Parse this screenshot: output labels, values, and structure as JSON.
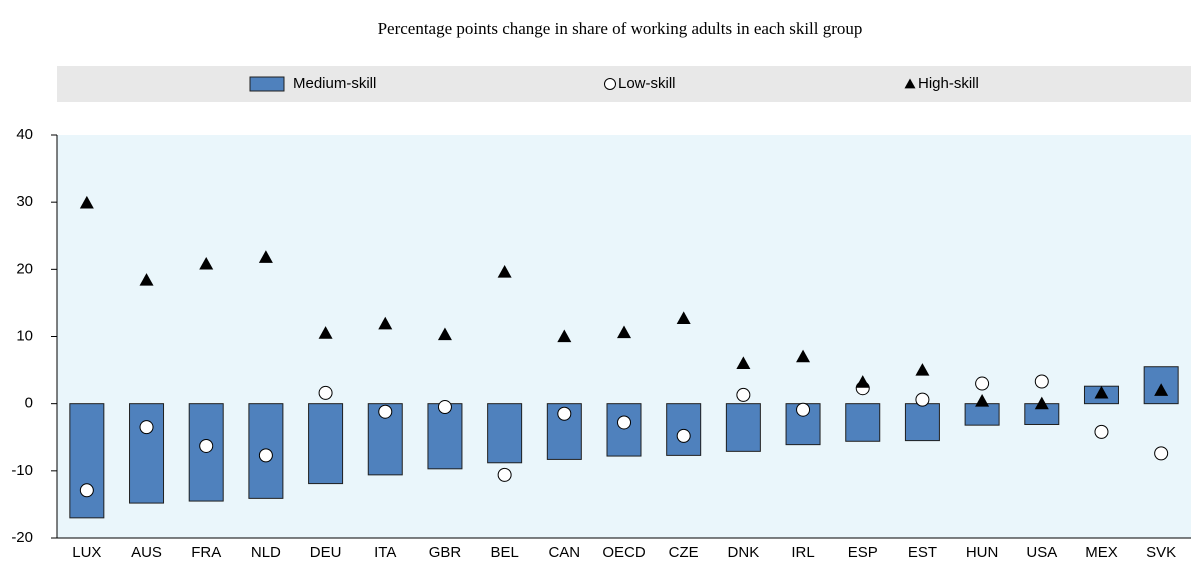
{
  "chart_data": {
    "type": "bar",
    "title": "Percentage points change in share of working adults in each skill group",
    "categories": [
      "LUX",
      "AUS",
      "FRA",
      "NLD",
      "DEU",
      "ITA",
      "GBR",
      "BEL",
      "CAN",
      "OECD",
      "CZE",
      "DNK",
      "IRL",
      "ESP",
      "EST",
      "HUN",
      "USA",
      "MEX",
      "SVK"
    ],
    "series": [
      {
        "name": "Medium-skill",
        "color": "#4f81bd",
        "marker": "bar",
        "values": [
          -17,
          -14.8,
          -14.5,
          -14.1,
          -11.9,
          -10.6,
          -9.7,
          -8.8,
          -8.3,
          -7.8,
          -7.7,
          -7.1,
          -6.1,
          -5.6,
          -5.5,
          -3.2,
          -3.1,
          2.6,
          5.5
        ]
      },
      {
        "name": "Low-skill",
        "color": "#ffffff",
        "marker": "circle",
        "values": [
          -12.9,
          -3.5,
          -6.3,
          -7.7,
          1.6,
          -1.2,
          -0.5,
          -10.6,
          -1.5,
          -2.8,
          -4.8,
          1.3,
          -0.9,
          2.3,
          0.6,
          3.0,
          3.3,
          -4.2,
          -7.4
        ]
      },
      {
        "name": "High-skill",
        "color": "#000000",
        "marker": "triangle",
        "values": [
          29.9,
          18.4,
          20.8,
          21.8,
          10.5,
          11.9,
          10.3,
          19.6,
          10.0,
          10.6,
          12.7,
          6.0,
          7.0,
          3.2,
          5.0,
          0.4,
          0.0,
          1.6,
          2.0
        ]
      }
    ],
    "ylim": [
      -20,
      40
    ],
    "yticks": [
      -20,
      -10,
      0,
      10,
      20,
      30,
      40
    ],
    "grid": false
  }
}
